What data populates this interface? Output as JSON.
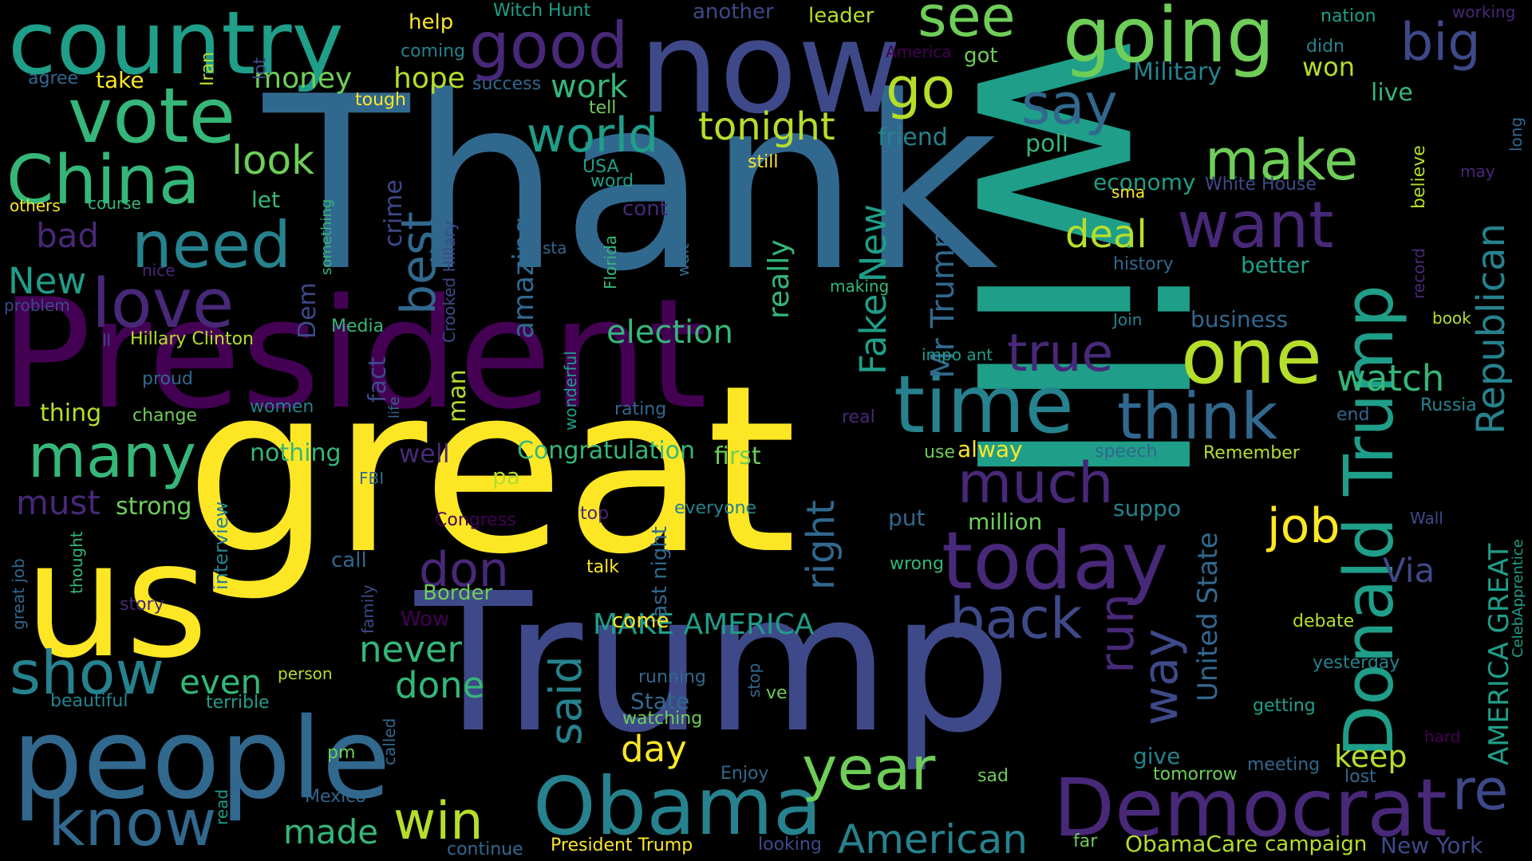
{
  "palette": {
    "yellow": "#fde725",
    "lime": "#b5de2b",
    "green": "#6ece58",
    "teal_green": "#35b779",
    "teal": "#1f9e89",
    "cyan_blue": "#26828e",
    "blue": "#31688e",
    "indigo": "#3e4989",
    "purple": "#482878",
    "dark_purple": "#440154"
  },
  "words": [
    {
      "text": "Thank",
      "color": "#31688e"
    },
    {
      "text": "will",
      "color": "#1f9e89"
    },
    {
      "text": "great",
      "color": "#fde725"
    },
    {
      "text": "President",
      "color": "#440154"
    },
    {
      "text": "Trump",
      "color": "#3e4989"
    },
    {
      "text": "now",
      "color": "#3e4989"
    },
    {
      "text": "us",
      "color": "#fde725"
    },
    {
      "text": "people",
      "color": "#31688e"
    },
    {
      "text": "country",
      "color": "#1f9e89"
    },
    {
      "text": "Democrat",
      "color": "#482878"
    },
    {
      "text": "Obama",
      "color": "#26828e"
    },
    {
      "text": "going",
      "color": "#6ece58"
    },
    {
      "text": "time",
      "color": "#26828e"
    },
    {
      "text": "today",
      "color": "#482878"
    },
    {
      "text": "vote",
      "color": "#35b779"
    },
    {
      "text": "China",
      "color": "#35b779"
    },
    {
      "text": "good",
      "color": "#482878"
    },
    {
      "text": "one",
      "color": "#b5de2b"
    },
    {
      "text": "Donald Trump",
      "color": "#1f9e89"
    },
    {
      "text": "need",
      "color": "#26828e"
    },
    {
      "text": "love",
      "color": "#482878"
    },
    {
      "text": "many",
      "color": "#35b779"
    },
    {
      "text": "think",
      "color": "#31688e"
    },
    {
      "text": "much",
      "color": "#482878"
    },
    {
      "text": "want",
      "color": "#482878"
    },
    {
      "text": "year",
      "color": "#6ece58"
    },
    {
      "text": "know",
      "color": "#31688e"
    },
    {
      "text": "show",
      "color": "#26828e"
    },
    {
      "text": "make",
      "color": "#6ece58"
    },
    {
      "text": "see",
      "color": "#6ece58"
    },
    {
      "text": "go",
      "color": "#b5de2b"
    },
    {
      "text": "say",
      "color": "#31688e"
    },
    {
      "text": "world",
      "color": "#1f9e89"
    },
    {
      "text": "big",
      "color": "#3e4989"
    },
    {
      "text": "true",
      "color": "#482878"
    },
    {
      "text": "back",
      "color": "#3e4989"
    },
    {
      "text": "re",
      "color": "#3e4989"
    },
    {
      "text": "win",
      "color": "#b5de2b"
    },
    {
      "text": "don",
      "color": "#482878"
    },
    {
      "text": "job",
      "color": "#fde725"
    },
    {
      "text": "best",
      "color": "#31688e"
    },
    {
      "text": "way",
      "color": "#3e4989"
    },
    {
      "text": "run",
      "color": "#482878"
    },
    {
      "text": "said",
      "color": "#26828e"
    },
    {
      "text": "Republican",
      "color": "#26828e"
    },
    {
      "text": "American",
      "color": "#26828e"
    },
    {
      "text": "tonight",
      "color": "#b5de2b"
    },
    {
      "text": "watch",
      "color": "#35b779"
    },
    {
      "text": "look",
      "color": "#6ece58"
    },
    {
      "text": "deal",
      "color": "#b5de2b"
    },
    {
      "text": "right",
      "color": "#31688e"
    },
    {
      "text": "Fake New",
      "color": "#1f9e89"
    },
    {
      "text": "made",
      "color": "#35b779"
    },
    {
      "text": "never",
      "color": "#35b779"
    },
    {
      "text": "done",
      "color": "#35b779"
    },
    {
      "text": "day",
      "color": "#fde725"
    },
    {
      "text": "even",
      "color": "#35b779"
    },
    {
      "text": "New",
      "color": "#1f9e89"
    },
    {
      "text": "bad",
      "color": "#482878"
    },
    {
      "text": "must",
      "color": "#482878"
    },
    {
      "text": "Via",
      "color": "#3e4989"
    },
    {
      "text": "keep",
      "color": "#b5de2b"
    },
    {
      "text": "work",
      "color": "#35b779"
    },
    {
      "text": "money",
      "color": "#6ece58"
    },
    {
      "text": "hope",
      "color": "#b5de2b"
    },
    {
      "text": "election",
      "color": "#35b779"
    },
    {
      "text": "Mr Trump",
      "color": "#31688e"
    },
    {
      "text": "really",
      "color": "#35b779"
    },
    {
      "text": "amazing",
      "color": "#31688e"
    },
    {
      "text": "MAKE AMERICA",
      "color": "#1f9e89"
    },
    {
      "text": "AMERICA GREAT",
      "color": "#1f9e89"
    },
    {
      "text": "United State",
      "color": "#31688e"
    },
    {
      "text": "Congratulation",
      "color": "#35b779"
    },
    {
      "text": "first",
      "color": "#6ece58"
    },
    {
      "text": "nothing",
      "color": "#35b779"
    },
    {
      "text": "well",
      "color": "#482878"
    },
    {
      "text": "won",
      "color": "#b5de2b"
    },
    {
      "text": "Military",
      "color": "#26828e"
    },
    {
      "text": "economy",
      "color": "#1f9e89"
    },
    {
      "text": "friend",
      "color": "#26828e"
    },
    {
      "text": "poll",
      "color": "#35b779"
    },
    {
      "text": "live",
      "color": "#35b779"
    },
    {
      "text": "business",
      "color": "#31688e"
    },
    {
      "text": "better",
      "color": "#1f9e89"
    },
    {
      "text": "thing",
      "color": "#b5de2b"
    },
    {
      "text": "strong",
      "color": "#6ece58"
    },
    {
      "text": "man",
      "color": "#b5de2b"
    },
    {
      "text": "fact",
      "color": "#3e4989"
    },
    {
      "text": "Dem",
      "color": "#3e4989"
    },
    {
      "text": "crime",
      "color": "#3e4989"
    },
    {
      "text": "let",
      "color": "#35b779"
    },
    {
      "text": "take",
      "color": "#fde725"
    },
    {
      "text": "help",
      "color": "#fde725"
    },
    {
      "text": "leader",
      "color": "#b5de2b"
    },
    {
      "text": "another",
      "color": "#3e4989"
    },
    {
      "text": "Witch Hunt",
      "color": "#1f9e89"
    },
    {
      "text": "nation",
      "color": "#1f9e89"
    },
    {
      "text": "working",
      "color": "#482878"
    },
    {
      "text": "didn",
      "color": "#26828e"
    },
    {
      "text": "got",
      "color": "#6ece58"
    },
    {
      "text": "America",
      "color": "#440154"
    },
    {
      "text": "coming",
      "color": "#26828e"
    },
    {
      "text": "success",
      "color": "#31688e"
    },
    {
      "text": "tough",
      "color": "#fde725"
    },
    {
      "text": "tell",
      "color": "#6ece58"
    },
    {
      "text": "lot",
      "color": "#3e4989"
    },
    {
      "text": "Iran",
      "color": "#b5de2b"
    },
    {
      "text": "agree",
      "color": "#31688e"
    },
    {
      "text": "still",
      "color": "#fde725"
    },
    {
      "text": "USA",
      "color": "#1f9e89"
    },
    {
      "text": "word",
      "color": "#1f9e89"
    },
    {
      "text": "cont",
      "color": "#482878"
    },
    {
      "text": "White House",
      "color": "#3e4989"
    },
    {
      "text": "sma",
      "color": "#fde725"
    },
    {
      "text": "believe",
      "color": "#b5de2b"
    },
    {
      "text": "may",
      "color": "#482878"
    },
    {
      "text": "long",
      "color": "#31688e"
    },
    {
      "text": "others",
      "color": "#fde725"
    },
    {
      "text": "course",
      "color": "#35b779"
    },
    {
      "text": "something",
      "color": "#35b779"
    },
    {
      "text": "Crooked Hillary",
      "color": "#3e4989"
    },
    {
      "text": "sta",
      "color": "#31688e"
    },
    {
      "text": "Florida",
      "color": "#35b779"
    },
    {
      "text": "wait",
      "color": "#31688e"
    },
    {
      "text": "history",
      "color": "#31688e"
    },
    {
      "text": "record",
      "color": "#482878"
    },
    {
      "text": "book",
      "color": "#b5de2b"
    },
    {
      "text": "making",
      "color": "#35b779"
    },
    {
      "text": "nice",
      "color": "#482878"
    },
    {
      "text": "problem",
      "color": "#3e4989"
    },
    {
      "text": "Join",
      "color": "#26828e"
    },
    {
      "text": "impo ant",
      "color": "#1f9e89"
    },
    {
      "text": "doesn",
      "color": "#1f9e89"
    },
    {
      "text": "Media",
      "color": "#35b779"
    },
    {
      "text": "ll",
      "color": "#3e4989"
    },
    {
      "text": "Hillary Clinton",
      "color": "#b5de2b"
    },
    {
      "text": "proud",
      "color": "#31688e"
    },
    {
      "text": "change",
      "color": "#6ece58"
    },
    {
      "text": "women",
      "color": "#26828e"
    },
    {
      "text": "life",
      "color": "#31688e"
    },
    {
      "text": "wonderful",
      "color": "#1f9e89"
    },
    {
      "text": "rating",
      "color": "#31688e"
    },
    {
      "text": "real",
      "color": "#482878"
    },
    {
      "text": "end",
      "color": "#31688e"
    },
    {
      "text": "Russia",
      "color": "#26828e"
    },
    {
      "text": "speech",
      "color": "#31688e"
    },
    {
      "text": "Remember",
      "color": "#b5de2b"
    },
    {
      "text": "use",
      "color": "#6ece58"
    },
    {
      "text": "alway",
      "color": "#fde725"
    },
    {
      "text": "FBI",
      "color": "#31688e"
    },
    {
      "text": "pa",
      "color": "#b5de2b"
    },
    {
      "text": "interview",
      "color": "#26828e"
    },
    {
      "text": "Congress",
      "color": "#440154"
    },
    {
      "text": "top",
      "color": "#482878"
    },
    {
      "text": "everyone",
      "color": "#26828e"
    },
    {
      "text": "put",
      "color": "#31688e"
    },
    {
      "text": "suppo",
      "color": "#26828e"
    },
    {
      "text": "million",
      "color": "#6ece58"
    },
    {
      "text": "Wall",
      "color": "#3e4989"
    },
    {
      "text": "CelebApprentice",
      "color": "#1f9e89"
    },
    {
      "text": "call",
      "color": "#31688e"
    },
    {
      "text": "talk",
      "color": "#fde725"
    },
    {
      "text": "wrong",
      "color": "#35b779"
    },
    {
      "text": "last night",
      "color": "#31688e"
    },
    {
      "text": "Border",
      "color": "#6ece58"
    },
    {
      "text": "Wow",
      "color": "#440154"
    },
    {
      "text": "come",
      "color": "#fde725"
    },
    {
      "text": "thought",
      "color": "#35b779"
    },
    {
      "text": "story",
      "color": "#482878"
    },
    {
      "text": "great job",
      "color": "#31688e"
    },
    {
      "text": "family",
      "color": "#3e4989"
    },
    {
      "text": "debate",
      "color": "#b5de2b"
    },
    {
      "text": "person",
      "color": "#b5de2b"
    },
    {
      "text": "beautiful",
      "color": "#26828e"
    },
    {
      "text": "terrible",
      "color": "#1f9e89"
    },
    {
      "text": "running",
      "color": "#31688e"
    },
    {
      "text": "State",
      "color": "#31688e"
    },
    {
      "text": "watching",
      "color": "#6ece58"
    },
    {
      "text": "stop",
      "color": "#31688e"
    },
    {
      "text": "ve",
      "color": "#6ece58"
    },
    {
      "text": "yesterday",
      "color": "#26828e"
    },
    {
      "text": "getting",
      "color": "#1f9e89"
    },
    {
      "text": "give",
      "color": "#26828e"
    },
    {
      "text": "tomorrow",
      "color": "#6ece58"
    },
    {
      "text": "meeting",
      "color": "#31688e"
    },
    {
      "text": "lost",
      "color": "#31688e"
    },
    {
      "text": "hard",
      "color": "#440154"
    },
    {
      "text": "pm",
      "color": "#6ece58"
    },
    {
      "text": "called",
      "color": "#31688e"
    },
    {
      "text": "Enjoy",
      "color": "#31688e"
    },
    {
      "text": "sad",
      "color": "#6ece58"
    },
    {
      "text": "read",
      "color": "#1f9e89"
    },
    {
      "text": "Mexico",
      "color": "#31688e"
    },
    {
      "text": "continue",
      "color": "#31688e"
    },
    {
      "text": "President Trump",
      "color": "#fde725"
    },
    {
      "text": "looking",
      "color": "#3e4989"
    },
    {
      "text": "far",
      "color": "#6ece58"
    },
    {
      "text": "ObamaCare",
      "color": "#b5de2b"
    },
    {
      "text": "campaign",
      "color": "#b5de2b"
    },
    {
      "text": "New York",
      "color": "#3e4989"
    }
  ]
}
